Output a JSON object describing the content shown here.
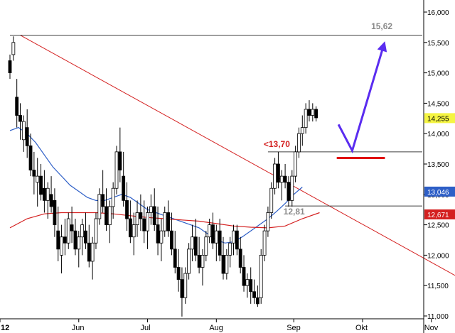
{
  "chart_data": {
    "type": "candlestick",
    "title": "",
    "xlabel": "",
    "ylabel": "",
    "ylim": [
      11.0,
      16.0
    ],
    "grid": false,
    "y_ticks": [
      "11,000",
      "11,500",
      "12,000",
      "12,500",
      "13,000",
      "13,500",
      "14,000",
      "14,500",
      "15,000",
      "15,500",
      "16,000"
    ],
    "y_tick_values": [
      11.0,
      11.5,
      12.0,
      12.5,
      13.0,
      13.5,
      14.0,
      14.5,
      15.0,
      15.5,
      16.0
    ],
    "x_ticks": [
      "12",
      "Jun",
      "Jul",
      "Aug",
      "Sep",
      "Okt",
      "Nov"
    ],
    "x_tick_days": [
      0,
      80,
      160,
      240,
      330,
      410,
      490
    ],
    "date_start_label": "12",
    "candles": [
      [
        0,
        15.2,
        15.3,
        14.9,
        15.0
      ],
      [
        4,
        15.3,
        15.6,
        15.2,
        15.5
      ],
      [
        8,
        14.6,
        14.9,
        14.1,
        14.3
      ],
      [
        12,
        14.3,
        14.5,
        13.9,
        14.2
      ],
      [
        16,
        13.9,
        14.3,
        13.7,
        14.2
      ],
      [
        20,
        14.1,
        14.4,
        13.6,
        13.8
      ],
      [
        24,
        13.8,
        14.0,
        13.3,
        13.4
      ],
      [
        28,
        13.4,
        13.7,
        13.0,
        13.3
      ],
      [
        32,
        13.2,
        13.6,
        12.8,
        13.3
      ],
      [
        36,
        13.3,
        13.5,
        12.9,
        13.0
      ],
      [
        40,
        13.1,
        13.4,
        12.7,
        12.9
      ],
      [
        44,
        12.9,
        13.2,
        12.6,
        13.1
      ],
      [
        48,
        13.0,
        13.3,
        12.7,
        12.8
      ],
      [
        52,
        12.9,
        13.1,
        12.3,
        12.5
      ],
      [
        56,
        12.4,
        12.8,
        11.9,
        12.1
      ],
      [
        60,
        12.0,
        12.5,
        11.7,
        12.3
      ],
      [
        64,
        12.3,
        12.6,
        12.0,
        12.2
      ],
      [
        68,
        12.2,
        12.7,
        12.1,
        12.6
      ],
      [
        72,
        12.5,
        12.8,
        12.2,
        12.4
      ],
      [
        76,
        12.4,
        12.6,
        12.0,
        12.1
      ],
      [
        80,
        12.1,
        12.4,
        11.8,
        12.3
      ],
      [
        84,
        12.3,
        12.6,
        12.0,
        12.5
      ],
      [
        88,
        12.4,
        12.7,
        12.1,
        12.2
      ],
      [
        92,
        12.2,
        12.5,
        11.8,
        11.9
      ],
      [
        96,
        11.9,
        12.3,
        11.6,
        12.2
      ],
      [
        100,
        12.2,
        12.7,
        12.1,
        12.6
      ],
      [
        104,
        12.6,
        13.1,
        12.5,
        13.0
      ],
      [
        108,
        13.0,
        13.4,
        12.7,
        12.8
      ],
      [
        112,
        12.8,
        13.1,
        12.4,
        12.5
      ],
      [
        116,
        12.5,
        12.9,
        12.2,
        12.8
      ],
      [
        120,
        12.8,
        13.2,
        12.6,
        13.1
      ],
      [
        124,
        13.1,
        13.8,
        13.0,
        13.7
      ],
      [
        128,
        13.7,
        14.1,
        13.2,
        13.4
      ],
      [
        132,
        13.3,
        13.7,
        12.8,
        12.9
      ],
      [
        136,
        12.9,
        13.2,
        12.4,
        12.6
      ],
      [
        140,
        12.6,
        12.9,
        12.2,
        12.3
      ],
      [
        144,
        12.3,
        12.7,
        12.0,
        12.5
      ],
      [
        148,
        12.5,
        12.9,
        12.3,
        12.7
      ],
      [
        152,
        12.7,
        13.0,
        12.4,
        12.6
      ],
      [
        156,
        12.6,
        12.9,
        12.2,
        12.4
      ],
      [
        160,
        12.4,
        12.8,
        12.1,
        12.7
      ],
      [
        164,
        12.7,
        13.0,
        12.5,
        12.8
      ],
      [
        168,
        12.8,
        13.1,
        12.4,
        12.5
      ],
      [
        172,
        12.5,
        12.8,
        12.0,
        12.2
      ],
      [
        176,
        12.2,
        12.6,
        11.9,
        12.4
      ],
      [
        180,
        12.4,
        12.8,
        12.3,
        12.7
      ],
      [
        184,
        12.7,
        12.9,
        12.3,
        12.4
      ],
      [
        188,
        12.4,
        12.7,
        12.0,
        12.1
      ],
      [
        192,
        12.1,
        12.4,
        11.7,
        11.8
      ],
      [
        196,
        11.8,
        12.1,
        11.4,
        11.6
      ],
      [
        200,
        11.6,
        11.8,
        10.99,
        11.3
      ],
      [
        204,
        11.3,
        11.8,
        11.2,
        11.7
      ],
      [
        208,
        11.7,
        12.2,
        11.6,
        12.1
      ],
      [
        212,
        12.1,
        12.5,
        11.9,
        12.3
      ],
      [
        216,
        12.3,
        12.6,
        11.9,
        12.0
      ],
      [
        220,
        12.0,
        12.3,
        11.7,
        11.8
      ],
      [
        224,
        11.8,
        12.1,
        11.5,
        12.0
      ],
      [
        228,
        12.0,
        12.4,
        11.9,
        12.3
      ],
      [
        232,
        12.3,
        12.6,
        12.2,
        12.5
      ],
      [
        236,
        12.5,
        12.7,
        12.1,
        12.2
      ],
      [
        240,
        12.2,
        12.5,
        11.9,
        12.4
      ],
      [
        244,
        12.4,
        12.6,
        11.9,
        12.0
      ],
      [
        248,
        12.0,
        12.3,
        11.6,
        11.7
      ],
      [
        252,
        11.7,
        12.1,
        11.6,
        12.0
      ],
      [
        256,
        12.0,
        12.3,
        11.8,
        12.2
      ],
      [
        260,
        12.2,
        12.5,
        12.0,
        12.4
      ],
      [
        264,
        12.4,
        12.5,
        12.0,
        12.1
      ],
      [
        268,
        12.1,
        12.3,
        11.7,
        11.8
      ],
      [
        272,
        11.8,
        12.0,
        11.4,
        11.5
      ],
      [
        276,
        11.5,
        11.7,
        11.3,
        11.6
      ],
      [
        280,
        11.6,
        11.8,
        11.2,
        11.4
      ],
      [
        284,
        11.4,
        11.6,
        11.2,
        11.3
      ],
      [
        288,
        11.3,
        11.5,
        11.15,
        11.2
      ],
      [
        292,
        11.3,
        12.1,
        11.2,
        12.0
      ],
      [
        296,
        12.0,
        12.5,
        11.9,
        12.4
      ],
      [
        300,
        12.4,
        12.8,
        12.3,
        12.7
      ],
      [
        304,
        12.7,
        13.2,
        12.6,
        13.1
      ],
      [
        308,
        13.1,
        13.6,
        13.0,
        13.5
      ],
      [
        312,
        13.5,
        13.7,
        13.1,
        13.2
      ],
      [
        316,
        13.2,
        13.4,
        12.9,
        13.3
      ],
      [
        320,
        13.3,
        13.5,
        13.1,
        13.2
      ],
      [
        324,
        13.2,
        13.3,
        12.8,
        12.9
      ],
      [
        328,
        12.9,
        13.4,
        12.8,
        13.3
      ],
      [
        332,
        13.3,
        13.8,
        13.2,
        13.7
      ],
      [
        336,
        13.7,
        14.1,
        13.6,
        14.0
      ],
      [
        340,
        14.0,
        14.3,
        13.8,
        14.1
      ],
      [
        344,
        14.1,
        14.5,
        14.0,
        14.4
      ],
      [
        348,
        14.4,
        14.55,
        14.2,
        14.3
      ],
      [
        352,
        14.3,
        14.5,
        14.2,
        14.4
      ],
      [
        356,
        14.4,
        14.45,
        14.2,
        14.26
      ]
    ],
    "series": [
      {
        "name": "",
        "color": "#2e5fc7",
        "values": [
          [
            0,
            14.05
          ],
          [
            10,
            14.1
          ],
          [
            20,
            14.0
          ],
          [
            30,
            13.85
          ],
          [
            40,
            13.65
          ],
          [
            50,
            13.45
          ],
          [
            60,
            13.3
          ],
          [
            70,
            13.15
          ],
          [
            80,
            13.05
          ],
          [
            90,
            12.95
          ],
          [
            100,
            12.9
          ],
          [
            110,
            12.9
          ],
          [
            120,
            12.95
          ],
          [
            130,
            13.0
          ],
          [
            140,
            12.95
          ],
          [
            150,
            12.85
          ],
          [
            160,
            12.75
          ],
          [
            170,
            12.7
          ],
          [
            180,
            12.65
          ],
          [
            190,
            12.6
          ],
          [
            200,
            12.55
          ],
          [
            210,
            12.5
          ],
          [
            220,
            12.45
          ],
          [
            230,
            12.35
          ],
          [
            240,
            12.25
          ],
          [
            250,
            12.2
          ],
          [
            260,
            12.22
          ],
          [
            270,
            12.3
          ],
          [
            280,
            12.4
          ],
          [
            290,
            12.5
          ],
          [
            300,
            12.6
          ],
          [
            310,
            12.72
          ],
          [
            320,
            12.85
          ],
          [
            330,
            13.0
          ],
          [
            340,
            13.12
          ]
        ]
      },
      {
        "name": "",
        "color": "#d42020",
        "values": [
          [
            0,
            12.45
          ],
          [
            20,
            12.6
          ],
          [
            40,
            12.68
          ],
          [
            60,
            12.7
          ],
          [
            80,
            12.7
          ],
          [
            100,
            12.7
          ],
          [
            120,
            12.68
          ],
          [
            140,
            12.65
          ],
          [
            160,
            12.62
          ],
          [
            180,
            12.6
          ],
          [
            200,
            12.58
          ],
          [
            220,
            12.56
          ],
          [
            240,
            12.52
          ],
          [
            260,
            12.48
          ],
          [
            280,
            12.46
          ],
          [
            300,
            12.45
          ],
          [
            320,
            12.48
          ],
          [
            340,
            12.6
          ],
          [
            360,
            12.7
          ]
        ]
      }
    ],
    "trendlines": [
      {
        "kind": "diagonal",
        "color": "#d42020",
        "from": [
          12,
          15.62
        ],
        "to": [
          590,
          11.1
        ]
      },
      {
        "kind": "horizontal",
        "color": "#404040",
        "y": 15.62,
        "x_from": 0,
        "x_to": 600
      },
      {
        "kind": "horizontal",
        "color": "#404040",
        "y": 13.7,
        "x_from": 300,
        "x_to": 600
      },
      {
        "kind": "horizontal",
        "color": "#404040",
        "y": 12.81,
        "x_from": 320,
        "x_to": 600
      }
    ],
    "annotations": [
      {
        "text": "15,62",
        "color": "#8a8a8a",
        "x": 420,
        "y": 15.72
      },
      {
        "text": "<13,70",
        "color": "#d42020",
        "x": 295,
        "y": 13.78
      },
      {
        "text": "12,81",
        "color": "#8a8a8a",
        "x": 318,
        "y": 12.67
      }
    ],
    "price_labels": [
      {
        "text": "14,255",
        "bg": "#f5f542",
        "fg": "#000000",
        "y": 14.255
      },
      {
        "text": "13,046",
        "bg": "#2e5fc7",
        "fg": "#ffffff",
        "y": 13.046
      },
      {
        "text": "12,671",
        "bg": "#d42020",
        "fg": "#ffffff",
        "y": 12.671
      }
    ],
    "arrow": {
      "color": "#5a2cf0",
      "points": [
        [
          382,
          14.15
        ],
        [
          398,
          13.72
        ],
        [
          436,
          15.52
        ]
      ]
    },
    "target_line": {
      "color": "#e01010",
      "y": 13.6,
      "x_from": 380,
      "x_to": 436
    }
  }
}
